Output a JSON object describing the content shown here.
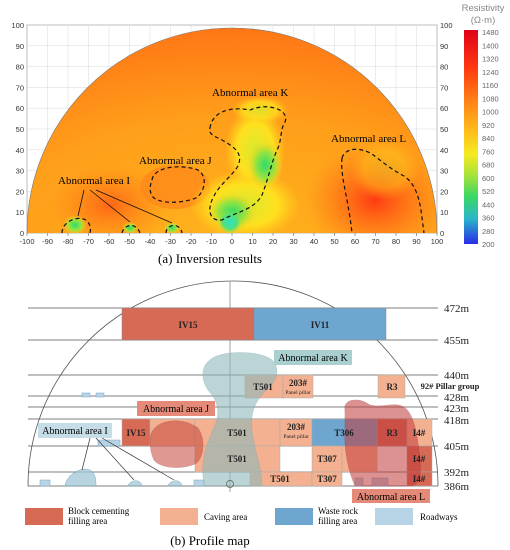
{
  "panel_a": {
    "caption": "(a) Inversion results",
    "x_ticks": [
      "-100",
      "-90",
      "-80",
      "-70",
      "-60",
      "-50",
      "-40",
      "-30",
      "-20",
      "-10",
      "0",
      "10",
      "20",
      "30",
      "40",
      "50",
      "60",
      "70",
      "80",
      "90",
      "100"
    ],
    "y_ticks": [
      "0",
      "10",
      "20",
      "30",
      "40",
      "50",
      "60",
      "70",
      "80",
      "90",
      "100"
    ],
    "labels": {
      "area_i": "Abnormal area I",
      "area_j": "Abnormal area J",
      "area_k": "Abnormal area K",
      "area_l": "Abnormal area L"
    },
    "colorbar": {
      "title": "Resistivity",
      "unit": "(Ω·m)",
      "ticks": [
        "1480",
        "1400",
        "1320",
        "1240",
        "1160",
        "1080",
        "1000",
        "920",
        "840",
        "760",
        "680",
        "600",
        "520",
        "440",
        "360",
        "280",
        "200"
      ]
    }
  },
  "panel_b": {
    "caption": "(b) Profile map",
    "elevations": [
      "472m",
      "455m",
      "440m",
      "428m",
      "423m",
      "418m",
      "405m",
      "392m",
      "386m"
    ],
    "blocks": {
      "iv15_top": "IV15",
      "iv11": "IV11",
      "t501_a": "T501",
      "p203_a": "203#",
      "p203_a_sub": "Panel pillar",
      "r3_a": "R3",
      "pillar_group": "92# Pillar group",
      "iv15_left": "IV15",
      "t501_b": "T501",
      "p203_b": "203#",
      "p203_b_sub": "Panel pillar",
      "t306": "T306",
      "r3_b": "R3",
      "i4_a": "I4#",
      "t501_c": "T501",
      "t307_a": "T307",
      "i4_b": "I4#",
      "t501_d": "T501",
      "t307_b": "T307",
      "i4_c": "I4#"
    },
    "labels": {
      "area_k": "Abnormal area K",
      "area_j": "Abnormal area J",
      "area_i": "Abnormal area I",
      "area_l": "Abnormal area L"
    },
    "legend": {
      "block": "Block cementing filling area",
      "block_l1": "Block cementing",
      "block_l2": "filling area",
      "caving": "Caving area",
      "waste": "Waste rock filling area",
      "waste_l1": "Waste rock",
      "waste_l2": "filling area",
      "roadways": "Roadways"
    },
    "colors": {
      "block": "#d66a55",
      "caving": "#f3b192",
      "waste": "#6ea6cf",
      "roadways": "#b6d4e6",
      "abnormal_label_k": "#a9cfcf",
      "abnormal_label_j": "#e58a78"
    }
  }
}
